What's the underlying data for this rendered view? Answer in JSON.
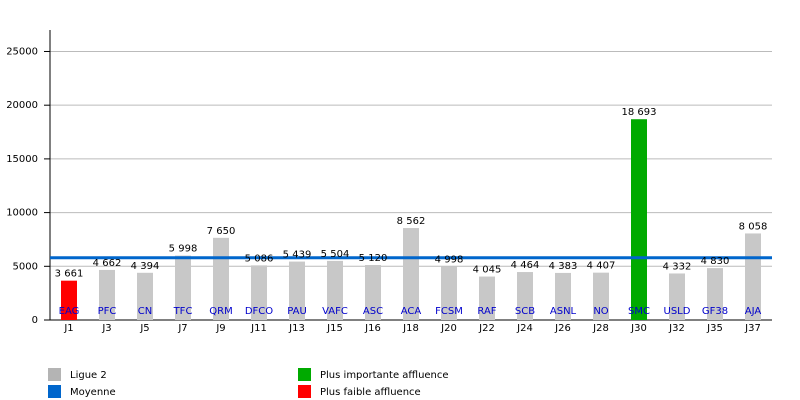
{
  "chart_data": {
    "type": "bar",
    "categories": [
      "J1",
      "J3",
      "J5",
      "J7",
      "J9",
      "J11",
      "J13",
      "J15",
      "J16",
      "J18",
      "J20",
      "J22",
      "J24",
      "J26",
      "J28",
      "J30",
      "J32",
      "J35",
      "J37"
    ],
    "team_labels": [
      "EAG",
      "PFC",
      "CN",
      "TFC",
      "QRM",
      "DFCO",
      "PAU",
      "VAFC",
      "ASC",
      "ACA",
      "FCSM",
      "RAF",
      "SCB",
      "ASNL",
      "NO",
      "SMC",
      "USLD",
      "GF38",
      "AJA"
    ],
    "values": [
      3661,
      4662,
      4394,
      5998,
      7650,
      5086,
      5439,
      5504,
      5120,
      8562,
      4998,
      4045,
      4464,
      4383,
      4407,
      18693,
      4332,
      4830,
      8058
    ],
    "value_labels": [
      "3 661",
      "4 662",
      "4 394",
      "5 998",
      "7 650",
      "5 086",
      "5 439",
      "5 504",
      "5 120",
      "8 562",
      "4 998",
      "4 045",
      "4 464",
      "4 383",
      "4 407",
      "18 693",
      "4 332",
      "4 830",
      "8 058"
    ],
    "colors": [
      "#ff0000",
      "#c8c8c8",
      "#c8c8c8",
      "#c8c8c8",
      "#c8c8c8",
      "#c8c8c8",
      "#c8c8c8",
      "#c8c8c8",
      "#c8c8c8",
      "#c8c8c8",
      "#c8c8c8",
      "#c8c8c8",
      "#c8c8c8",
      "#c8c8c8",
      "#c8c8c8",
      "#00aa00",
      "#c8c8c8",
      "#c8c8c8",
      "#c8c8c8"
    ],
    "average": {
      "value": 5800,
      "color": "#0066cc"
    },
    "legend": [
      {
        "name": "Ligue 2",
        "color": "#b4b4b4"
      },
      {
        "name": "Moyenne",
        "color": "#0066cc"
      },
      {
        "name": "Plus importante affluence",
        "color": "#00aa00"
      },
      {
        "name": "Plus faible affluence",
        "color": "#ff0000"
      }
    ],
    "ylim": [
      0,
      27000
    ],
    "yticks": [
      0,
      5000,
      10000,
      15000,
      20000,
      25000
    ],
    "grid": true
  }
}
